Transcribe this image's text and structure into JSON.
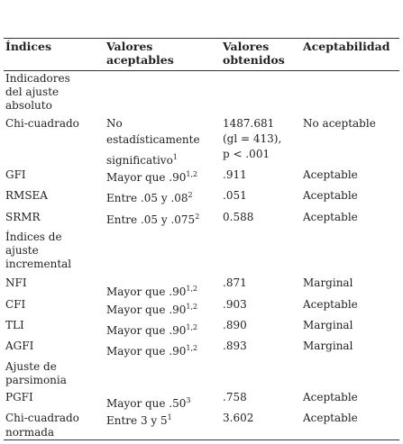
{
  "table": {
    "headers": [
      [
        "Índices"
      ],
      [
        "Valores",
        "aceptables"
      ],
      [
        "Valores",
        "obtenidos"
      ],
      [
        "Aceptabilidad"
      ]
    ],
    "rows": [
      {
        "section": [
          "Indicadores",
          "del ajuste",
          "absoluto"
        ]
      },
      {
        "cells": [
          [
            "Chi-cuadrado"
          ],
          [
            "No",
            "estadísticamente",
            {
              "text": "significativo",
              "sup": "1"
            }
          ],
          [
            "1487.681",
            "(gl = 413),",
            "p < .001"
          ],
          [
            "No aceptable"
          ]
        ]
      },
      {
        "cells": [
          [
            "GFI"
          ],
          [
            {
              "text": "Mayor que .90",
              "sup": "1,2"
            }
          ],
          [
            ".911"
          ],
          [
            "Aceptable"
          ]
        ]
      },
      {
        "cells": [
          [
            "RMSEA"
          ],
          [
            {
              "text": "Entre .05 y .08",
              "sup": "2"
            }
          ],
          [
            ".051"
          ],
          [
            "Aceptable"
          ]
        ]
      },
      {
        "cells": [
          [
            "SRMR"
          ],
          [
            {
              "text": "Entre .05 y .075",
              "sup": "2"
            }
          ],
          [
            "0.588"
          ],
          [
            "Aceptable"
          ]
        ]
      },
      {
        "section": [
          "Índices de",
          "ajuste",
          "incremental"
        ]
      },
      {
        "cells": [
          [
            "NFI"
          ],
          [
            {
              "text": "Mayor que .90",
              "sup": "1,2"
            }
          ],
          [
            ".871"
          ],
          [
            "Marginal"
          ]
        ]
      },
      {
        "cells": [
          [
            "CFI"
          ],
          [
            {
              "text": "Mayor que .90",
              "sup": "1,2"
            }
          ],
          [
            ".903"
          ],
          [
            "Aceptable"
          ]
        ]
      },
      {
        "cells": [
          [
            "TLI"
          ],
          [
            {
              "text": "Mayor que .90",
              "sup": "1,2"
            }
          ],
          [
            ".890"
          ],
          [
            "Marginal"
          ]
        ]
      },
      {
        "cells": [
          [
            "AGFI"
          ],
          [
            {
              "text": "Mayor que .90",
              "sup": "1,2"
            }
          ],
          [
            ".893"
          ],
          [
            "Marginal"
          ]
        ]
      },
      {
        "section": [
          "Ajuste de",
          "parsimonia"
        ]
      },
      {
        "cells": [
          [
            "PGFI"
          ],
          [
            {
              "text": "Mayor que .50",
              "sup": "3"
            }
          ],
          [
            ".758"
          ],
          [
            "Aceptable"
          ]
        ]
      },
      {
        "cells": [
          [
            "Chi-cuadrado",
            "normada"
          ],
          [
            {
              "text": "Entre 3 y 5",
              "sup": "1"
            }
          ],
          [
            "3.602"
          ],
          [
            "Aceptable"
          ]
        ]
      }
    ]
  }
}
